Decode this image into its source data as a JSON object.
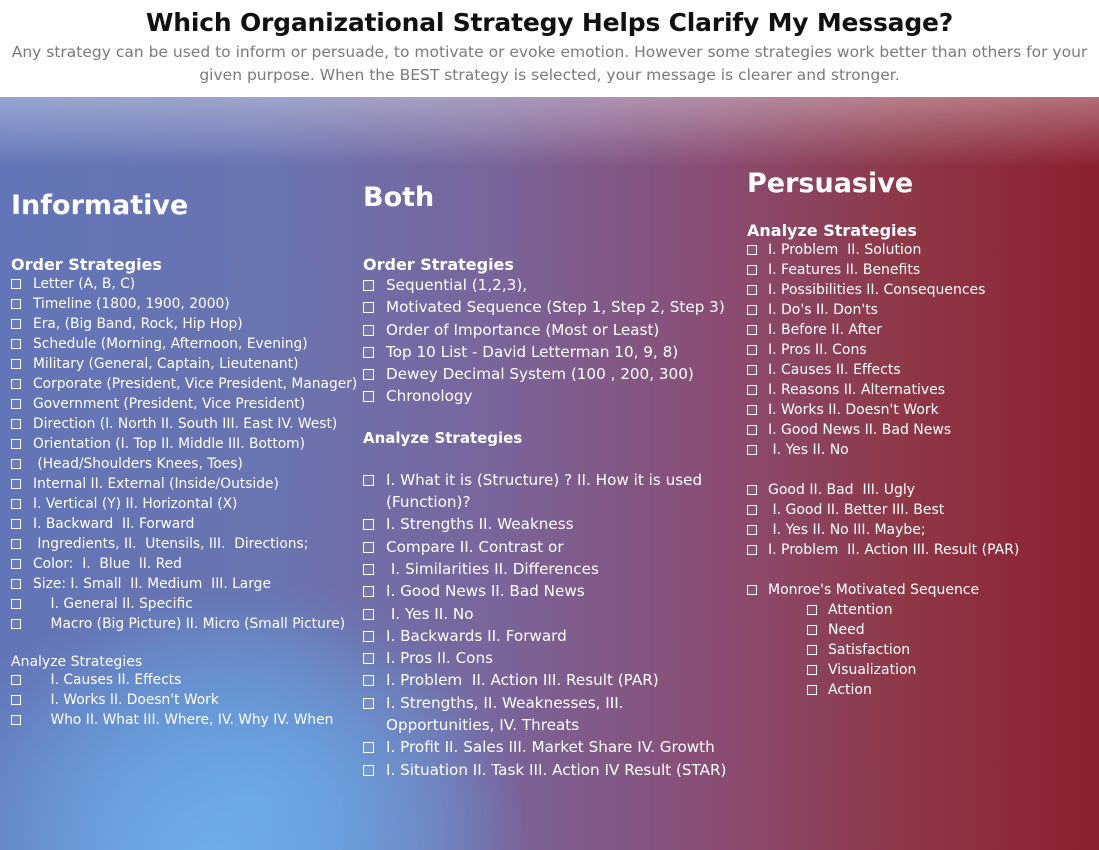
{
  "header": {
    "title": "Which Organizational Strategy Helps Clarify My Message?",
    "subtitle": "Any strategy can be used to inform or persuade, to motivate or evoke emotion. However some strategies work better than others for your given purpose. When the BEST strategy is selected, your message is clearer and stronger."
  },
  "informative": {
    "heading": "Informative",
    "order_title": "Order Strategies",
    "order_items": [
      "Letter (A, B, C)",
      "Timeline (1800, 1900, 2000)",
      "Era, (Big Band, Rock, Hip Hop)",
      "Schedule (Morning, Afternoon, Evening)",
      "Military (General, Captain, Lieutenant)",
      "Corporate (President, Vice President, Manager)",
      "Government (President, Vice President)",
      "Direction (I. North II. South III. East IV. West)",
      "Orientation (I. Top II. Middle III. Bottom)",
      " (Head/Shoulders Knees, Toes)",
      "Internal II. External (Inside/Outside)",
      "I. Vertical (Y) II. Horizontal (X)",
      "I. Backward  II. Forward",
      " Ingredients, II.  Utensils, III.  Directions;",
      "Color:  I.  Blue  II. Red",
      "Size: I. Small  II. Medium  III. Large",
      "    I. General II. Specific",
      "    Macro (Big Picture) II. Micro (Small Picture)"
    ],
    "analyze_title": "Analyze Strategies",
    "analyze_items": [
      "    I. Causes II. Effects",
      "    I. Works II. Doesn't Work",
      "    Who II. What III. Where, IV. Why IV. When"
    ]
  },
  "both": {
    "heading": "Both",
    "order_title": "Order Strategies",
    "order_items": [
      "Sequential (1,2,3),",
      "Motivated Sequence (Step 1, Step 2, Step 3)",
      "Order of Importance (Most or Least)",
      "Top 10 List - David Letterman 10, 9, 8)",
      "Dewey Decimal System (100 , 200, 300)",
      "Chronology"
    ],
    "analyze_title": "Analyze Strategies",
    "analyze_items_a": [
      "I. What it is (Structure) ? II. How it is used (Function)?",
      "I. Strengths II. Weakness",
      "Compare II. Contrast or",
      " I. Similarities II. Differences"
    ],
    "analyze_items_b": [
      "I. Good News II. Bad News",
      " I. Yes II. No",
      "I. Backwards II. Forward",
      "I. Pros II. Cons",
      "I. Problem  II. Action III. Result (PAR)",
      "I. Strengths, II. Weaknesses, III. Opportunities, IV. Threats",
      "I. Profit II. Sales III. Market Share IV. Growth",
      "I. Situation II. Task III. Action IV Result (STAR)"
    ]
  },
  "persuasive": {
    "heading": "Persuasive",
    "analyze_title": "Analyze Strategies",
    "items_a": [
      "I. Problem  II. Solution",
      "I. Features II. Benefits",
      "I. Possibilities II. Consequences",
      "I. Do's II. Don'ts",
      "I. Before II. After",
      "I. Pros II. Cons",
      "I. Causes II. Effects",
      "I. Reasons II. Alternatives",
      "I. Works II. Doesn't Work",
      "I. Good News II. Bad News",
      " I. Yes II. No"
    ],
    "items_b": [
      "Good II. Bad  III. Ugly",
      " I. Good II. Better III. Best",
      " I. Yes II. No III. Maybe;",
      "I. Problem  II. Action III. Result (PAR)"
    ],
    "monroe_title": "Monroe's Motivated Sequence",
    "monroe_items": [
      "Attention",
      "Need",
      "Satisfaction",
      "Visualization",
      "Action"
    ]
  }
}
